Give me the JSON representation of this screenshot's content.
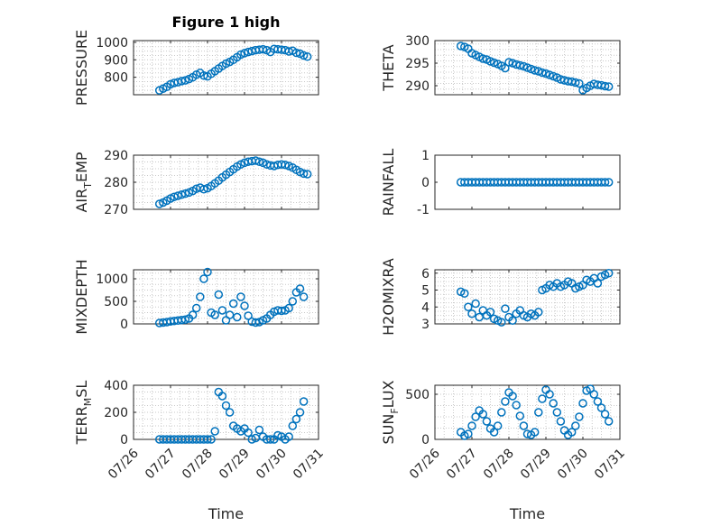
{
  "title": "Figure 1 high",
  "xlabel": "Time",
  "x_ticks": [
    "07/26",
    "07/27",
    "07/28",
    "07/29",
    "07/30",
    "07/31"
  ],
  "marker_color": "#0072BD",
  "chart_data": [
    {
      "type": "scatter",
      "ylabel": "PRESSURE",
      "ylim": [
        700,
        1010
      ],
      "yticks": [
        800,
        900,
        1000
      ],
      "xlim": [
        0,
        5
      ],
      "grid": true,
      "x": [
        0.7,
        0.8,
        0.9,
        1.0,
        1.1,
        1.2,
        1.3,
        1.4,
        1.5,
        1.6,
        1.7,
        1.8,
        1.9,
        2.0,
        2.1,
        2.2,
        2.3,
        2.4,
        2.5,
        2.6,
        2.7,
        2.8,
        2.9,
        3.0,
        3.1,
        3.2,
        3.3,
        3.4,
        3.5,
        3.6,
        3.7,
        3.8,
        3.9,
        4.0,
        4.1,
        4.2,
        4.3,
        4.4,
        4.5,
        4.6,
        4.7
      ],
      "values": [
        725,
        735,
        745,
        760,
        768,
        772,
        778,
        782,
        790,
        800,
        815,
        825,
        810,
        805,
        820,
        835,
        850,
        865,
        878,
        888,
        900,
        915,
        930,
        938,
        945,
        950,
        955,
        958,
        960,
        955,
        945,
        962,
        960,
        958,
        955,
        948,
        952,
        940,
        935,
        925,
        918
      ]
    },
    {
      "type": "scatter",
      "ylabel": "THETA",
      "ylim": [
        288,
        300
      ],
      "yticks": [
        290,
        295,
        300
      ],
      "xlim": [
        0,
        5
      ],
      "grid": true,
      "x": [
        0.7,
        0.8,
        0.9,
        1.0,
        1.1,
        1.2,
        1.3,
        1.4,
        1.5,
        1.6,
        1.7,
        1.8,
        1.9,
        2.0,
        2.1,
        2.2,
        2.3,
        2.4,
        2.5,
        2.6,
        2.7,
        2.8,
        2.9,
        3.0,
        3.1,
        3.2,
        3.3,
        3.4,
        3.5,
        3.6,
        3.7,
        3.8,
        3.9,
        4.0,
        4.1,
        4.2,
        4.3,
        4.4,
        4.5,
        4.6,
        4.7
      ],
      "values": [
        298.8,
        298.6,
        298.2,
        297.2,
        296.8,
        296.4,
        296.0,
        295.8,
        295.4,
        295.1,
        294.8,
        294.4,
        293.9,
        295.2,
        295.0,
        294.7,
        294.5,
        294.3,
        294.0,
        293.7,
        293.4,
        293.2,
        292.9,
        292.7,
        292.4,
        292.1,
        291.8,
        291.4,
        291.2,
        291.0,
        290.9,
        290.7,
        290.5,
        289.0,
        289.5,
        290.0,
        290.4,
        290.2,
        290.1,
        289.9,
        289.8
      ]
    },
    {
      "type": "scatter",
      "ylabel": "AIR_TEMP",
      "ylim": [
        270,
        290
      ],
      "yticks": [
        270,
        280,
        290
      ],
      "xlim": [
        0,
        5
      ],
      "grid": true,
      "x": [
        0.7,
        0.8,
        0.9,
        1.0,
        1.1,
        1.2,
        1.3,
        1.4,
        1.5,
        1.6,
        1.7,
        1.8,
        1.9,
        2.0,
        2.1,
        2.2,
        2.3,
        2.4,
        2.5,
        2.6,
        2.7,
        2.8,
        2.9,
        3.0,
        3.1,
        3.2,
        3.3,
        3.4,
        3.5,
        3.6,
        3.7,
        3.8,
        3.9,
        4.0,
        4.1,
        4.2,
        4.3,
        4.4,
        4.5,
        4.6,
        4.7
      ],
      "values": [
        272.0,
        272.5,
        273.2,
        274.0,
        274.6,
        275.0,
        275.4,
        275.8,
        276.2,
        276.8,
        277.6,
        278.0,
        277.4,
        277.8,
        278.6,
        279.6,
        280.6,
        281.8,
        282.8,
        283.8,
        284.8,
        285.8,
        286.6,
        287.2,
        287.6,
        287.8,
        288.0,
        287.6,
        287.2,
        286.6,
        286.2,
        286.0,
        286.4,
        286.6,
        286.4,
        286.0,
        285.4,
        284.6,
        283.8,
        283.2,
        283.0
      ]
    },
    {
      "type": "scatter",
      "ylabel": "RAINFALL",
      "ylim": [
        -1,
        1
      ],
      "yticks": [
        -1,
        0,
        1
      ],
      "xlim": [
        0,
        5
      ],
      "grid": false,
      "x": [
        0.7,
        0.8,
        0.9,
        1.0,
        1.1,
        1.2,
        1.3,
        1.4,
        1.5,
        1.6,
        1.7,
        1.8,
        1.9,
        2.0,
        2.1,
        2.2,
        2.3,
        2.4,
        2.5,
        2.6,
        2.7,
        2.8,
        2.9,
        3.0,
        3.1,
        3.2,
        3.3,
        3.4,
        3.5,
        3.6,
        3.7,
        3.8,
        3.9,
        4.0,
        4.1,
        4.2,
        4.3,
        4.4,
        4.5,
        4.6,
        4.7
      ],
      "values": [
        0,
        0,
        0,
        0,
        0,
        0,
        0,
        0,
        0,
        0,
        0,
        0,
        0,
        0,
        0,
        0,
        0,
        0,
        0,
        0,
        0,
        0,
        0,
        0,
        0,
        0,
        0,
        0,
        0,
        0,
        0,
        0,
        0,
        0,
        0,
        0,
        0,
        0,
        0,
        0,
        0
      ]
    },
    {
      "type": "scatter",
      "ylabel": "MIXDEPTH",
      "ylim": [
        0,
        1200
      ],
      "yticks": [
        0,
        500,
        1000
      ],
      "xlim": [
        0,
        5
      ],
      "grid": true,
      "x": [
        0.7,
        0.8,
        0.9,
        1.0,
        1.1,
        1.2,
        1.3,
        1.4,
        1.5,
        1.6,
        1.7,
        1.8,
        1.9,
        2.0,
        2.1,
        2.2,
        2.3,
        2.4,
        2.5,
        2.6,
        2.7,
        2.8,
        2.9,
        3.0,
        3.1,
        3.2,
        3.3,
        3.4,
        3.5,
        3.6,
        3.7,
        3.8,
        3.9,
        4.0,
        4.1,
        4.2,
        4.3,
        4.4,
        4.5,
        4.6
      ],
      "values": [
        20,
        30,
        40,
        55,
        65,
        75,
        85,
        95,
        120,
        200,
        350,
        600,
        1000,
        1150,
        250,
        200,
        650,
        300,
        80,
        200,
        450,
        150,
        600,
        400,
        180,
        50,
        30,
        40,
        80,
        120,
        200,
        270,
        300,
        290,
        300,
        350,
        500,
        700,
        780,
        600
      ]
    },
    {
      "type": "scatter",
      "ylabel": "H2OMIXRA",
      "ylim": [
        3,
        6.2
      ],
      "yticks": [
        3,
        4,
        5,
        6
      ],
      "xlim": [
        0,
        5
      ],
      "grid": true,
      "x": [
        0.7,
        0.8,
        0.9,
        1.0,
        1.1,
        1.2,
        1.3,
        1.4,
        1.5,
        1.6,
        1.7,
        1.8,
        1.9,
        2.0,
        2.1,
        2.2,
        2.3,
        2.4,
        2.5,
        2.6,
        2.7,
        2.8,
        2.9,
        3.0,
        3.1,
        3.2,
        3.3,
        3.4,
        3.5,
        3.6,
        3.7,
        3.8,
        3.9,
        4.0,
        4.1,
        4.2,
        4.3,
        4.4,
        4.5,
        4.6,
        4.7
      ],
      "values": [
        4.9,
        4.8,
        4.0,
        3.6,
        4.2,
        3.4,
        3.8,
        3.5,
        3.7,
        3.3,
        3.2,
        3.1,
        3.9,
        3.4,
        3.2,
        3.6,
        3.8,
        3.5,
        3.4,
        3.6,
        3.5,
        3.7,
        5.0,
        5.1,
        5.3,
        5.2,
        5.4,
        5.2,
        5.3,
        5.5,
        5.4,
        5.1,
        5.2,
        5.3,
        5.6,
        5.5,
        5.7,
        5.4,
        5.8,
        5.9,
        6.0
      ]
    },
    {
      "type": "scatter",
      "ylabel": "TERR_MSL",
      "ylim": [
        0,
        400
      ],
      "yticks": [
        0,
        200,
        400
      ],
      "xlim": [
        0,
        5
      ],
      "grid": true,
      "x": [
        0.7,
        0.8,
        0.9,
        1.0,
        1.1,
        1.2,
        1.3,
        1.4,
        1.5,
        1.6,
        1.7,
        1.8,
        1.9,
        2.0,
        2.1,
        2.2,
        2.3,
        2.4,
        2.5,
        2.6,
        2.7,
        2.8,
        2.9,
        3.0,
        3.1,
        3.2,
        3.3,
        3.4,
        3.5,
        3.6,
        3.7,
        3.8,
        3.9,
        4.0,
        4.1,
        4.2,
        4.3,
        4.4,
        4.5,
        4.6
      ],
      "values": [
        0,
        0,
        0,
        0,
        0,
        0,
        0,
        0,
        0,
        0,
        0,
        0,
        0,
        0,
        0,
        60,
        350,
        320,
        250,
        200,
        100,
        80,
        60,
        80,
        50,
        0,
        10,
        70,
        20,
        0,
        0,
        0,
        30,
        20,
        0,
        20,
        100,
        150,
        200,
        280
      ]
    },
    {
      "type": "scatter",
      "ylabel": "SUN_FLUX",
      "ylim": [
        0,
        600
      ],
      "yticks": [
        0,
        500
      ],
      "xlim": [
        0,
        5
      ],
      "grid": true,
      "x": [
        0.7,
        0.8,
        0.9,
        1.0,
        1.1,
        1.2,
        1.3,
        1.4,
        1.5,
        1.6,
        1.7,
        1.8,
        1.9,
        2.0,
        2.1,
        2.2,
        2.3,
        2.4,
        2.5,
        2.6,
        2.7,
        2.8,
        2.9,
        3.0,
        3.1,
        3.2,
        3.3,
        3.4,
        3.5,
        3.6,
        3.7,
        3.8,
        3.9,
        4.0,
        4.1,
        4.2,
        4.3,
        4.4,
        4.5,
        4.6,
        4.7
      ],
      "values": [
        80,
        40,
        60,
        150,
        250,
        320,
        280,
        200,
        120,
        80,
        150,
        300,
        420,
        520,
        480,
        380,
        260,
        150,
        60,
        50,
        80,
        300,
        450,
        550,
        500,
        400,
        300,
        200,
        100,
        50,
        80,
        150,
        250,
        400,
        540,
        560,
        500,
        420,
        350,
        280,
        200
      ]
    }
  ]
}
